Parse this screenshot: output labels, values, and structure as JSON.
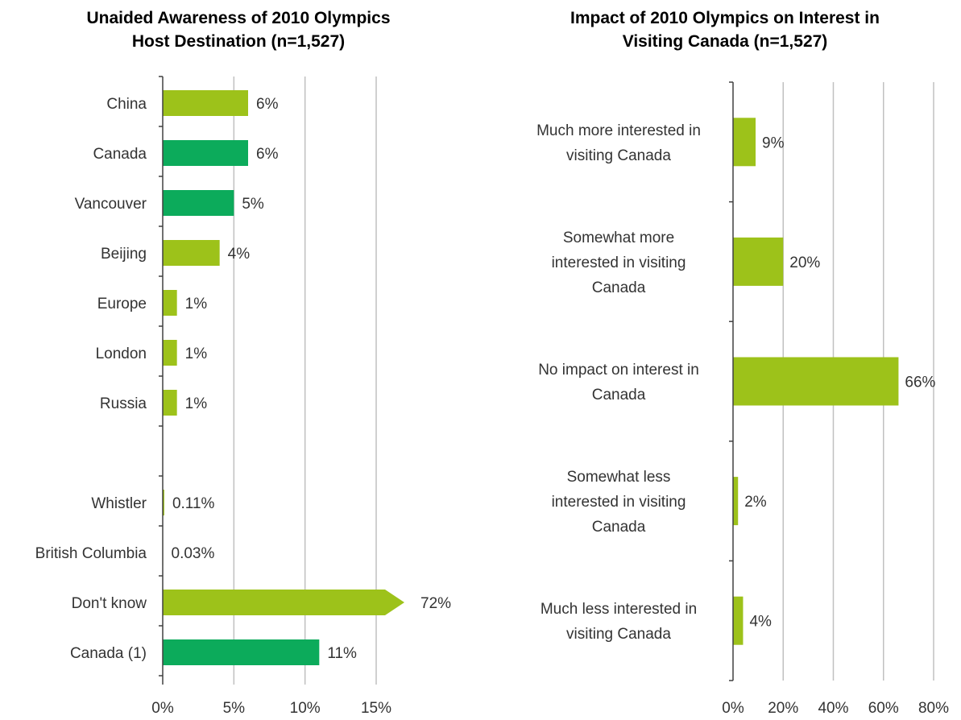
{
  "chart_data": [
    {
      "type": "bar",
      "orientation": "horizontal",
      "title": [
        "Unaided Awareness of 2010 Olympics",
        "Host Destination (n=1,527)"
      ],
      "categories": [
        "China",
        "Canada",
        "Vancouver",
        "Beijing",
        "Europe",
        "London",
        "Russia",
        "",
        "Whistler",
        "British Columbia",
        "Don't know",
        "Canada (1)"
      ],
      "values": [
        6,
        6,
        5,
        4,
        1,
        1,
        1,
        null,
        0.11,
        0.03,
        72,
        11
      ],
      "value_labels": [
        "6%",
        "6%",
        "5%",
        "4%",
        "1%",
        "1%",
        "1%",
        "",
        "0.11%",
        "0.03%",
        "72%",
        "11%"
      ],
      "bar_colors": [
        "#9dc21a",
        "#0cab5b",
        "#0cab5b",
        "#9dc21a",
        "#9dc21a",
        "#9dc21a",
        "#9dc21a",
        "",
        "#9dc21a",
        "#9dc21a",
        "#9dc21a",
        "#0cab5b"
      ],
      "broken_bars": [
        false,
        false,
        false,
        false,
        false,
        false,
        false,
        false,
        false,
        false,
        true,
        false
      ],
      "xlim": [
        0,
        15
      ],
      "xticks": [
        "0%",
        "5%",
        "10%",
        "15%"
      ],
      "grid": true
    },
    {
      "type": "bar",
      "orientation": "horizontal",
      "title": [
        "Impact of 2010 Olympics on Interest in",
        "Visiting Canada (n=1,527)"
      ],
      "categories": [
        [
          "Much more interested in",
          "visiting Canada"
        ],
        [
          "Somewhat more",
          "interested in visiting",
          "Canada"
        ],
        [
          "No impact on interest in",
          "Canada"
        ],
        [
          "Somewhat less",
          "interested in visiting",
          "Canada"
        ],
        [
          "Much less interested in",
          "visiting Canada"
        ]
      ],
      "values": [
        9,
        20,
        66,
        2,
        4
      ],
      "value_labels": [
        "9%",
        "20%",
        "66%",
        "2%",
        "4%"
      ],
      "bar_color": "#9dc21a",
      "xlim": [
        0,
        80
      ],
      "xticks": [
        "0%",
        "20%",
        "40%",
        "60%",
        "80%"
      ],
      "grid": true
    }
  ],
  "colors": {
    "gridline": "#c0c0c0",
    "axis": "#404040"
  }
}
